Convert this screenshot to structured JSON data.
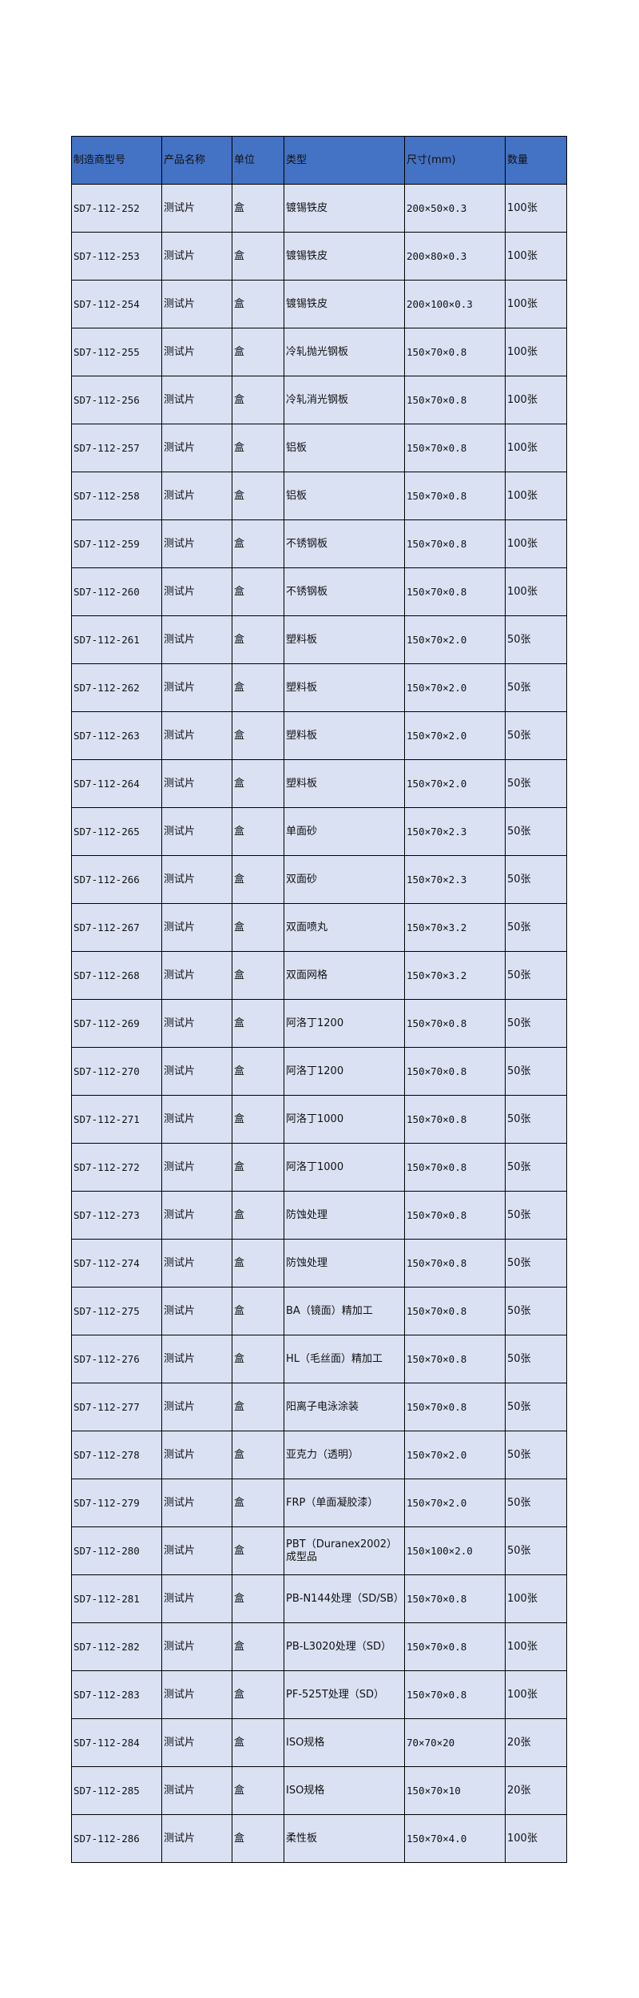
{
  "colors": {
    "header_bg": "#4472C4",
    "row_bg": "#D9E1F2"
  },
  "table": {
    "headers": [
      "制造商型号",
      "产品名称",
      "单位",
      "类型",
      "尺寸(mm)",
      "数量"
    ],
    "rows": [
      [
        "SD7-112-252",
        "测试片",
        "盒",
        "镀锡铁皮",
        "200×50×0.3",
        "100张"
      ],
      [
        "SD7-112-253",
        "测试片",
        "盒",
        "镀锡铁皮",
        "200×80×0.3",
        "100张"
      ],
      [
        "SD7-112-254",
        "测试片",
        "盒",
        "镀锡铁皮",
        "200×100×0.3",
        "100张"
      ],
      [
        "SD7-112-255",
        "测试片",
        "盒",
        "冷轧抛光钢板",
        "150×70×0.8",
        "100张"
      ],
      [
        "SD7-112-256",
        "测试片",
        "盒",
        "冷轧消光钢板",
        "150×70×0.8",
        "100张"
      ],
      [
        "SD7-112-257",
        "测试片",
        "盒",
        "铝板",
        "150×70×0.8",
        "100张"
      ],
      [
        "SD7-112-258",
        "测试片",
        "盒",
        "铝板",
        "150×70×0.8",
        "100张"
      ],
      [
        "SD7-112-259",
        "测试片",
        "盒",
        "不锈钢板",
        "150×70×0.8",
        "100张"
      ],
      [
        "SD7-112-260",
        "测试片",
        "盒",
        "不锈钢板",
        "150×70×0.8",
        "100张"
      ],
      [
        "SD7-112-261",
        "测试片",
        "盒",
        "塑料板",
        "150×70×2.0",
        "50张"
      ],
      [
        "SD7-112-262",
        "测试片",
        "盒",
        "塑料板",
        "150×70×2.0",
        "50张"
      ],
      [
        "SD7-112-263",
        "测试片",
        "盒",
        "塑料板",
        "150×70×2.0",
        "50张"
      ],
      [
        "SD7-112-264",
        "测试片",
        "盒",
        "塑料板",
        "150×70×2.0",
        "50张"
      ],
      [
        "SD7-112-265",
        "测试片",
        "盒",
        "单面砂",
        "150×70×2.3",
        "50张"
      ],
      [
        "SD7-112-266",
        "测试片",
        "盒",
        "双面砂",
        "150×70×2.3",
        "50张"
      ],
      [
        "SD7-112-267",
        "测试片",
        "盒",
        "双面喷丸",
        "150×70×3.2",
        "50张"
      ],
      [
        "SD7-112-268",
        "测试片",
        "盒",
        "双面网格",
        "150×70×3.2",
        "50张"
      ],
      [
        "SD7-112-269",
        "测试片",
        "盒",
        "阿洛丁1200",
        "150×70×0.8",
        "50张"
      ],
      [
        "SD7-112-270",
        "测试片",
        "盒",
        "阿洛丁1200",
        "150×70×0.8",
        "50张"
      ],
      [
        "SD7-112-271",
        "测试片",
        "盒",
        "阿洛丁1000",
        "150×70×0.8",
        "50张"
      ],
      [
        "SD7-112-272",
        "测试片",
        "盒",
        "阿洛丁1000",
        "150×70×0.8",
        "50张"
      ],
      [
        "SD7-112-273",
        "测试片",
        "盒",
        "防蚀处理",
        "150×70×0.8",
        "50张"
      ],
      [
        "SD7-112-274",
        "测试片",
        "盒",
        "防蚀处理",
        "150×70×0.8",
        "50张"
      ],
      [
        "SD7-112-275",
        "测试片",
        "盒",
        "BA（镜面）精加工",
        "150×70×0.8",
        "50张"
      ],
      [
        "SD7-112-276",
        "测试片",
        "盒",
        "HL（毛丝面）精加工",
        "150×70×0.8",
        "50张"
      ],
      [
        "SD7-112-277",
        "测试片",
        "盒",
        "阳离子电泳涂装",
        "150×70×0.8",
        "50张"
      ],
      [
        "SD7-112-278",
        "测试片",
        "盒",
        "亚克力（透明）",
        "150×70×2.0",
        "50张"
      ],
      [
        "SD7-112-279",
        "测试片",
        "盒",
        "FRP（单面凝胶漆）",
        "150×70×2.0",
        "50张"
      ],
      [
        "SD7-112-280",
        "测试片",
        "盒",
        "PBT（Duranex2002）成型品",
        "150×100×2.0",
        "50张"
      ],
      [
        "SD7-112-281",
        "测试片",
        "盒",
        "PB-N144处理（SD/SB）",
        "150×70×0.8",
        "100张"
      ],
      [
        "SD7-112-282",
        "测试片",
        "盒",
        "PB-L3020处理（SD）",
        "150×70×0.8",
        "100张"
      ],
      [
        "SD7-112-283",
        "测试片",
        "盒",
        "PF-525T处理（SD）",
        "150×70×0.8",
        "100张"
      ],
      [
        "SD7-112-284",
        "测试片",
        "盒",
        "ISO规格",
        "70×70×20",
        "20张"
      ],
      [
        "SD7-112-285",
        "测试片",
        "盒",
        "ISO规格",
        "150×70×10",
        "20张"
      ],
      [
        "SD7-112-286",
        "测试片",
        "盒",
        "柔性板",
        "150×70×4.0",
        "100张"
      ]
    ]
  }
}
